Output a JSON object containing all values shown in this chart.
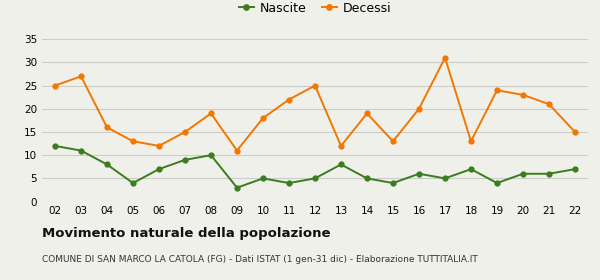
{
  "years": [
    "02",
    "03",
    "04",
    "05",
    "06",
    "07",
    "08",
    "09",
    "10",
    "11",
    "12",
    "13",
    "14",
    "15",
    "16",
    "17",
    "18",
    "19",
    "20",
    "21",
    "22"
  ],
  "nascite": [
    12,
    11,
    8,
    4,
    7,
    9,
    10,
    3,
    5,
    4,
    5,
    8,
    5,
    4,
    6,
    5,
    7,
    4,
    6,
    6,
    7
  ],
  "decessi": [
    25,
    27,
    16,
    13,
    12,
    15,
    19,
    11,
    18,
    22,
    25,
    12,
    19,
    13,
    20,
    31,
    13,
    24,
    23,
    21,
    15
  ],
  "nascite_color": "#3a7d1e",
  "decessi_color": "#f07800",
  "title": "Movimento naturale della popolazione",
  "subtitle": "COMUNE DI SAN MARCO LA CATOLA (FG) - Dati ISTAT (1 gen-31 dic) - Elaborazione TUTTITALIA.IT",
  "legend_nascite": "Nascite",
  "legend_decessi": "Decessi",
  "ylim": [
    0,
    35
  ],
  "yticks": [
    0,
    5,
    10,
    15,
    20,
    25,
    30,
    35
  ],
  "background_color": "#f0f0eb",
  "grid_color": "#cccccc"
}
